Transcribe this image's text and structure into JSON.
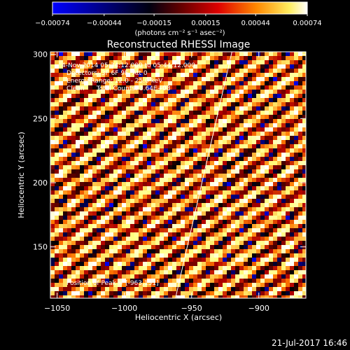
{
  "chart_data": {
    "type": "heatmap",
    "title": "Reconstructed RHESSI Image",
    "xlabel": "Heliocentric X (arcsec)",
    "ylabel": "Heliocentric Y (arcsec)",
    "xlim": [
      -1055,
      -865
    ],
    "ylim": [
      110,
      302
    ],
    "x_ticks": [
      -1050,
      -1000,
      -950,
      -900
    ],
    "x_tick_labels": [
      "−1050",
      "−1000",
      "−950",
      "−900"
    ],
    "y_ticks": [
      150,
      200,
      250,
      300
    ],
    "y_tick_labels": [
      "150",
      "200",
      "250",
      "300"
    ],
    "colorbar": {
      "min": -0.00074,
      "max": 0.00074,
      "ticks": [
        -0.00074,
        -0.00044,
        -0.00015,
        0.00015,
        0.00044,
        0.00074
      ],
      "tick_labels": [
        "−0.00074",
        "−0.00044",
        "−0.00015",
        "0.00015",
        "0.00044",
        "0.00074"
      ],
      "units": "(photons cm⁻² s⁻¹ asec⁻²)",
      "colormap": [
        "#0000ff",
        "#000000",
        "#b00000",
        "#ff7700",
        "#ffff80",
        "#ffffff"
      ]
    },
    "annotations": [
      "4-Nov-2014 05:34:12.000 to 05:44:12.000",
      "Detectors: 3F 6F 9F, Att 0",
      "Energy Range: 12.0 - 25.0 keV",
      "Clean      Total Counts: 3.64E+03"
    ],
    "peak_label": "Position of Peak = [-963,151]",
    "limb_line": [
      [
        -962,
        110
      ],
      [
        -920,
        302
      ]
    ]
  },
  "footer": {
    "timestamp": "21-Jul-2017 16:46"
  }
}
